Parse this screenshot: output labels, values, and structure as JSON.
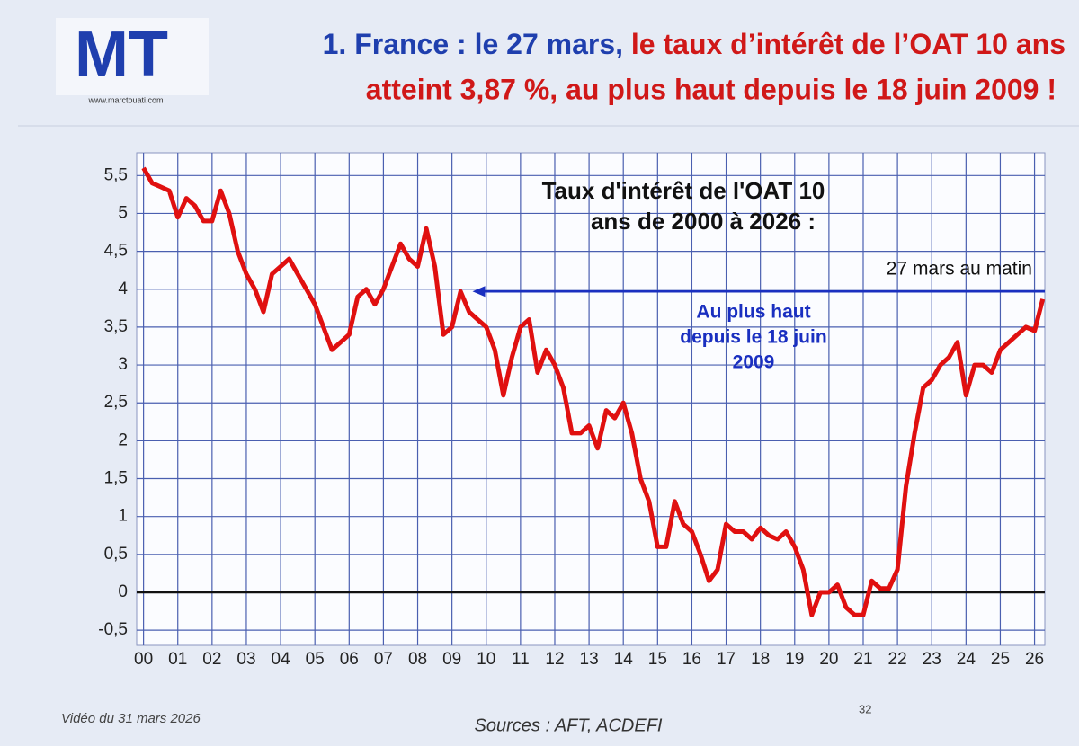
{
  "chart_data": {
    "type": "line",
    "title": [
      "1. France : le 27 mars,",
      "le taux d’intérêt de l’OAT 10 ans",
      "atteint 3,87 %, au plus haut depuis le 18 juin 2009 !"
    ],
    "logo": "MT",
    "logo_url": "www.marctouati.com",
    "chart_title": [
      "Taux d'intérêt de l'OAT 10",
      "ans de 2000 à 2026 :"
    ],
    "annotations": [
      "27 mars au matin",
      "Au plus haut",
      "depuis le 18 juin",
      "2009"
    ],
    "arrow": {
      "y": 3.97,
      "x": [
        9.6,
        26.3
      ],
      "color": "#1a2fc0"
    },
    "footer_left": "Vidéo du 31 mars 2026",
    "page_number": "32",
    "sources": "Sources : AFT, ACDEFI",
    "x": [
      0,
      0.25,
      0.5,
      0.75,
      1,
      1.25,
      1.5,
      1.75,
      2,
      2.25,
      2.5,
      2.75,
      3,
      3.25,
      3.5,
      3.75,
      4,
      4.25,
      4.5,
      4.75,
      5,
      5.25,
      5.5,
      5.75,
      6,
      6.25,
      6.5,
      6.75,
      7,
      7.25,
      7.5,
      7.75,
      8,
      8.25,
      8.5,
      8.75,
      9,
      9.25,
      9.5,
      9.75,
      10,
      10.25,
      10.5,
      10.75,
      11,
      11.25,
      11.5,
      11.75,
      12,
      12.25,
      12.5,
      12.75,
      13,
      13.25,
      13.5,
      13.75,
      14,
      14.25,
      14.5,
      14.75,
      15,
      15.25,
      15.5,
      15.75,
      16,
      16.25,
      16.5,
      16.75,
      17,
      17.25,
      17.5,
      17.75,
      18,
      18.25,
      18.5,
      18.75,
      19,
      19.25,
      19.5,
      19.75,
      20,
      20.25,
      20.5,
      20.75,
      21,
      21.25,
      21.5,
      21.75,
      22,
      22.25,
      22.5,
      22.75,
      23,
      23.25,
      23.5,
      23.75,
      24,
      24.25,
      24.5,
      24.75,
      25,
      25.25,
      25.5,
      25.75,
      26,
      26.24
    ],
    "series": [
      {
        "name": "OAT 10 ans",
        "color": "#e01010",
        "values": [
          5.6,
          5.4,
          5.35,
          5.3,
          4.95,
          5.2,
          5.1,
          4.9,
          4.9,
          5.3,
          5.0,
          4.5,
          4.2,
          4.0,
          3.7,
          4.2,
          4.3,
          4.4,
          4.2,
          4.0,
          3.8,
          3.5,
          3.2,
          3.3,
          3.4,
          3.9,
          4.0,
          3.8,
          4.0,
          4.3,
          4.6,
          4.4,
          4.3,
          4.8,
          4.3,
          3.4,
          3.5,
          3.97,
          3.7,
          3.6,
          3.5,
          3.2,
          2.6,
          3.1,
          3.5,
          3.6,
          2.9,
          3.2,
          3.0,
          2.7,
          2.1,
          2.1,
          2.2,
          1.9,
          2.4,
          2.3,
          2.5,
          2.1,
          1.5,
          1.2,
          0.6,
          0.6,
          1.2,
          0.9,
          0.8,
          0.5,
          0.15,
          0.3,
          0.9,
          0.8,
          0.8,
          0.7,
          0.85,
          0.75,
          0.7,
          0.8,
          0.6,
          0.3,
          -0.3,
          0.0,
          0.0,
          0.1,
          -0.2,
          -0.3,
          -0.3,
          0.15,
          0.05,
          0.05,
          0.3,
          1.4,
          2.1,
          2.7,
          2.8,
          3.0,
          3.1,
          3.3,
          2.6,
          3.0,
          3.0,
          2.9,
          3.2,
          3.3,
          3.4,
          3.5,
          3.45,
          3.87
        ]
      }
    ],
    "xlim": [
      -0.2,
      26.3
    ],
    "ylim": [
      -0.7,
      5.8
    ],
    "xticks": [
      {
        "value": 0,
        "label": "00"
      },
      {
        "value": 1,
        "label": "01"
      },
      {
        "value": 2,
        "label": "02"
      },
      {
        "value": 3,
        "label": "03"
      },
      {
        "value": 4,
        "label": "04"
      },
      {
        "value": 5,
        "label": "05"
      },
      {
        "value": 6,
        "label": "06"
      },
      {
        "value": 7,
        "label": "07"
      },
      {
        "value": 8,
        "label": "08"
      },
      {
        "value": 9,
        "label": "09"
      },
      10,
      11,
      12,
      13,
      14,
      15,
      16,
      17,
      18,
      19,
      20,
      21,
      22,
      23,
      24,
      25,
      26
    ],
    "yticks": [
      {
        "value": -0.5,
        "label": "-0,5"
      },
      0,
      {
        "value": 0.5,
        "label": "0,5"
      },
      1,
      {
        "value": 1.5,
        "label": "1,5"
      },
      2,
      {
        "value": 2.5,
        "label": "2,5"
      },
      3,
      {
        "value": 3.5,
        "label": "3,5"
      },
      4,
      {
        "value": 4.5,
        "label": "4,5"
      },
      5,
      {
        "value": 5.5,
        "label": "5,5"
      }
    ],
    "grid": true
  }
}
